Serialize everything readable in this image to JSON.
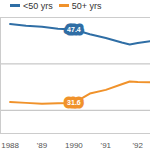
{
  "chart_data": {
    "type": "line",
    "x": [
      1988,
      1988.5,
      1989,
      1989.5,
      1990,
      1990.5,
      1991,
      1991.5,
      1991.75,
      1992,
      1992.5
    ],
    "series": [
      {
        "name": "<50 yrs",
        "color": "#2f6ea5",
        "values": [
          48.6,
          48.2,
          48.0,
          47.6,
          47.4,
          46.4,
          45.6,
          44.6,
          44.2,
          44.5,
          45.0
        ]
      },
      {
        "name": "50+ yrs",
        "color": "#f0922b",
        "values": [
          31.8,
          31.6,
          31.4,
          31.5,
          31.6,
          33.6,
          34.4,
          35.6,
          36.2,
          36.1,
          36.0
        ]
      }
    ],
    "annotations": [
      {
        "x": 1990,
        "y": 47.4,
        "label": "47.4",
        "color": "#2f6ea5"
      },
      {
        "x": 1990,
        "y": 31.6,
        "label": "31.6",
        "color": "#f0922b"
      }
    ],
    "xlim": [
      1987.7,
      1992.4
    ],
    "xticks": [
      {
        "value": 1988,
        "label": "1988"
      },
      {
        "value": 1989,
        "label": "'89"
      },
      {
        "value": 1990,
        "label": "1990"
      },
      {
        "value": 1991,
        "label": "'91"
      },
      {
        "value": 1992,
        "label": "'92"
      }
    ],
    "ylim": [
      25,
      50
    ],
    "yticks": [
      30,
      40,
      50
    ],
    "grid": true,
    "tick_labels": "x",
    "legend": "top"
  }
}
